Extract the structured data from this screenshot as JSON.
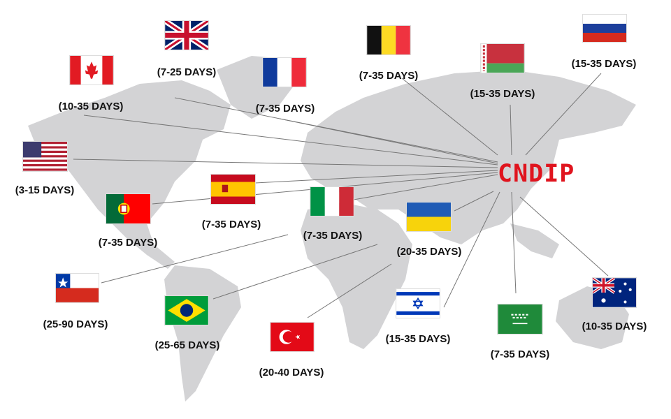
{
  "hub": {
    "label": "CNDIP",
    "color": "#e0141e"
  },
  "map_color": "#d3d3d5",
  "countries": [
    {
      "flag": "united-kingdom",
      "delivery": "(7-25 DAYS)"
    },
    {
      "flag": "canada",
      "delivery": "(10-35 DAYS)"
    },
    {
      "flag": "france",
      "delivery": "(7-35 DAYS)"
    },
    {
      "flag": "belgium",
      "delivery": "(7-35 DAYS)"
    },
    {
      "flag": "belarus",
      "delivery": "(15-35 DAYS)"
    },
    {
      "flag": "russia",
      "delivery": "(15-35 DAYS)"
    },
    {
      "flag": "united-states",
      "delivery": "(3-15 DAYS)"
    },
    {
      "flag": "spain",
      "delivery": "(7-35 DAYS)"
    },
    {
      "flag": "portugal",
      "delivery": "(7-35 DAYS)"
    },
    {
      "flag": "italy",
      "delivery": "(7-35 DAYS)"
    },
    {
      "flag": "ukraine",
      "delivery": "(20-35 DAYS)"
    },
    {
      "flag": "chile",
      "delivery": "(25-90 DAYS)"
    },
    {
      "flag": "brazil",
      "delivery": "(25-65 DAYS)"
    },
    {
      "flag": "turkey",
      "delivery": "(20-40 DAYS)"
    },
    {
      "flag": "israel",
      "delivery": "(15-35 DAYS)"
    },
    {
      "flag": "saudi-arabia",
      "delivery": "(7-35 DAYS)"
    },
    {
      "flag": "australia",
      "delivery": "(10-35 DAYS)"
    }
  ]
}
